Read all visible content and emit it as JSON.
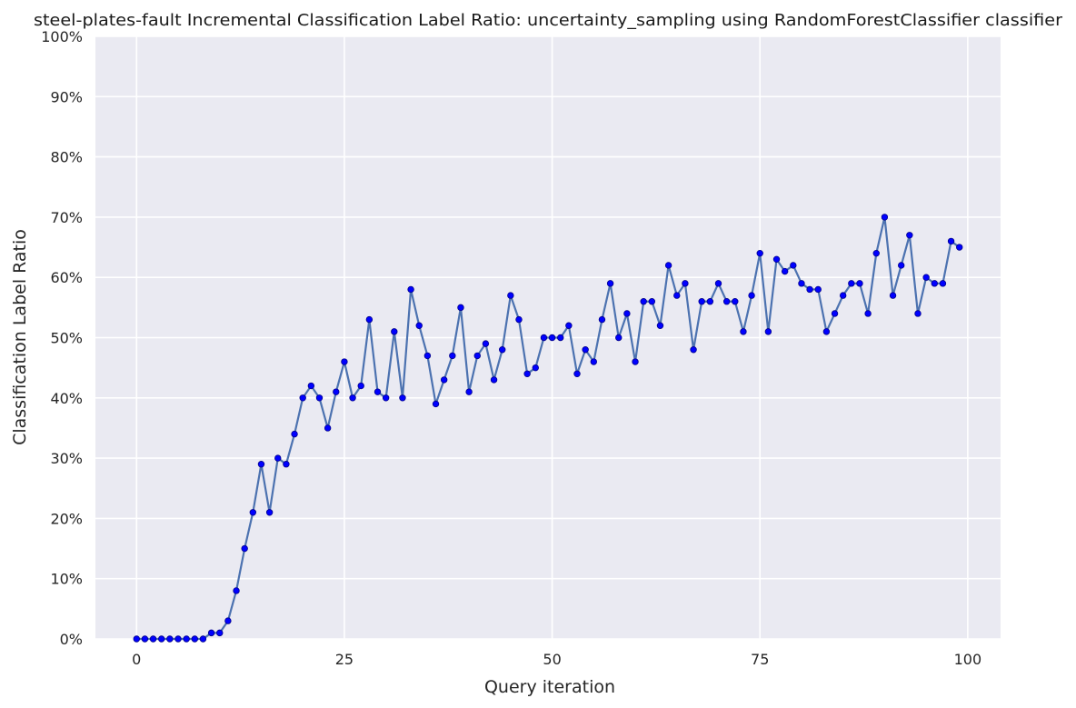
{
  "chart_data": {
    "type": "line",
    "title": "steel-plates-fault Incremental Classification Label Ratio: uncertainty_sampling using RandomForestClassifier classifier",
    "xlabel": "Query iteration",
    "ylabel": "Classification Label Ratio",
    "xlim": [
      -4.95,
      103.95
    ],
    "ylim": [
      0,
      100
    ],
    "x_ticks": [
      0,
      25,
      50,
      75,
      100
    ],
    "x_tick_labels": [
      "0",
      "25",
      "50",
      "75",
      "100"
    ],
    "y_ticks": [
      0,
      10,
      20,
      30,
      40,
      50,
      60,
      70,
      80,
      90,
      100
    ],
    "y_tick_labels": [
      "0%",
      "10%",
      "20%",
      "30%",
      "40%",
      "50%",
      "60%",
      "70%",
      "80%",
      "90%",
      "100%"
    ],
    "grid": true,
    "colors": {
      "background": "#eaeaf2",
      "grid": "#ffffff",
      "line": "#4c72b0",
      "marker": "#0000ff",
      "marker_edge": "#00008b"
    },
    "series": [
      {
        "x": [
          0,
          1,
          2,
          3,
          4,
          5,
          6,
          7,
          8,
          9,
          10,
          11,
          12,
          13,
          14,
          15,
          16,
          17,
          18,
          19,
          20,
          21,
          22,
          23,
          24,
          25,
          26,
          27,
          28,
          29,
          30,
          31,
          32,
          33,
          34,
          35,
          36,
          37,
          38,
          39,
          40,
          41,
          42,
          43,
          44,
          45,
          46,
          47,
          48,
          49,
          50,
          51,
          52,
          53,
          54,
          55,
          56,
          57,
          58,
          59,
          60,
          61,
          62,
          63,
          64,
          65,
          66,
          67,
          68,
          69,
          70,
          71,
          72,
          73,
          74,
          75,
          76,
          77,
          78,
          79,
          80,
          81,
          82,
          83,
          84,
          85,
          86,
          87,
          88,
          89,
          90,
          91,
          92,
          93,
          94,
          95,
          96,
          97,
          98,
          99
        ],
        "values": [
          0,
          0,
          0,
          0,
          0,
          0,
          0,
          0,
          0,
          1,
          1,
          3,
          8,
          15,
          21,
          29,
          21,
          30,
          29,
          34,
          40,
          42,
          40,
          35,
          41,
          46,
          40,
          42,
          53,
          41,
          40,
          51,
          40,
          58,
          52,
          47,
          39,
          43,
          47,
          55,
          41,
          47,
          49,
          43,
          48,
          57,
          53,
          44,
          45,
          50,
          50,
          50,
          52,
          44,
          48,
          46,
          53,
          59,
          50,
          54,
          46,
          56,
          56,
          52,
          62,
          57,
          59,
          48,
          56,
          56,
          59,
          56,
          56,
          51,
          57,
          64,
          51,
          63,
          61,
          62,
          59,
          58,
          58,
          51,
          54,
          57,
          59,
          59,
          54,
          64,
          70,
          57,
          62,
          67,
          54,
          60,
          59,
          59,
          66,
          65
        ]
      }
    ]
  }
}
